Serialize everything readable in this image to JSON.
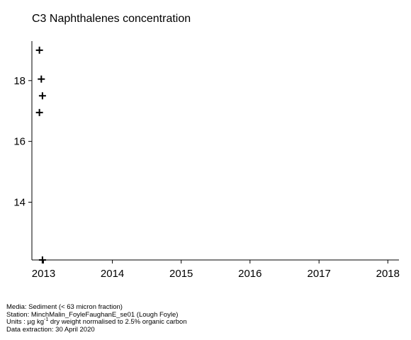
{
  "chart_data": {
    "type": "scatter",
    "title": "C3 Naphthalenes concentration",
    "xlabel": "",
    "ylabel": "",
    "x_ticks": [
      "2013",
      "2014",
      "2015",
      "2016",
      "2017",
      "2018"
    ],
    "y_ticks": [
      "14",
      "16",
      "18"
    ],
    "xlim": [
      "2012-10-31",
      "2018-03-01"
    ],
    "ylim": [
      12.1,
      19.3
    ],
    "grid": false,
    "marker": "plus",
    "series": [
      {
        "points": [
          {
            "x": "2012-12-10",
            "y": 19.0
          },
          {
            "x": "2012-12-20",
            "y": 18.05
          },
          {
            "x": "2012-12-26",
            "y": 17.5
          },
          {
            "x": "2012-12-10",
            "y": 16.95
          },
          {
            "x": "2012-12-26",
            "y": 12.1
          }
        ]
      }
    ]
  },
  "footer": {
    "media": "Media: Sediment (< 63 micron fraction)",
    "station": "Station: MinchMalin_FoyleFaughanE_se01 (Lough Foyle)",
    "units_prefix": "Units : µg kg",
    "units_exp": "-1",
    "units_suffix": " dry weight normalised to 2.5% organic carbon",
    "extraction": "Data extraction: 30 April 2020"
  }
}
